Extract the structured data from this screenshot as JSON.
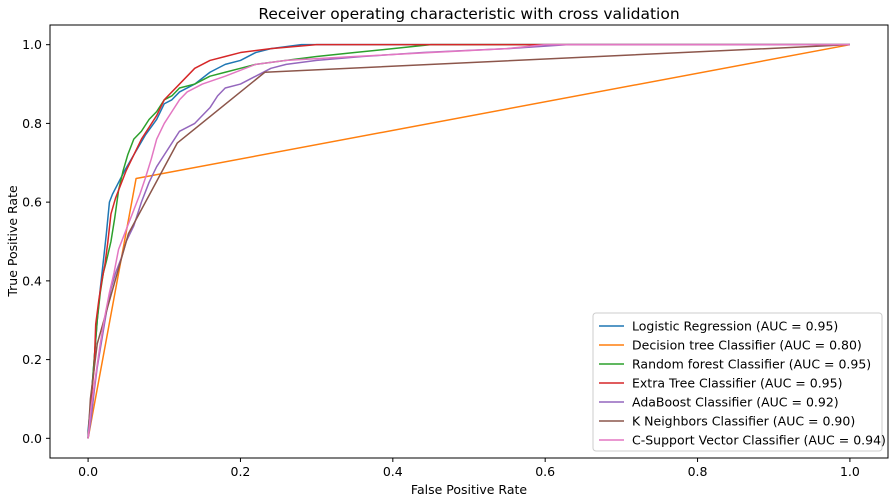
{
  "chart_data": {
    "type": "line",
    "title": "Receiver operating characteristic with cross validation",
    "xlabel": "False Positive Rate",
    "ylabel": "True Positive Rate",
    "xlim": [
      -0.05,
      1.05
    ],
    "ylim": [
      -0.05,
      1.05
    ],
    "xticks": [
      0.0,
      0.2,
      0.4,
      0.6,
      0.8,
      1.0
    ],
    "yticks": [
      0.0,
      0.2,
      0.4,
      0.6,
      0.8,
      1.0
    ],
    "xtick_labels": [
      "0.0",
      "0.2",
      "0.4",
      "0.6",
      "0.8",
      "1.0"
    ],
    "ytick_labels": [
      "0.0",
      "0.2",
      "0.4",
      "0.6",
      "0.8",
      "1.0"
    ],
    "grid": false,
    "legend_position": "lower-right",
    "series": [
      {
        "name": "Logistic Regression (AUC = 0.95)",
        "color": "#1f77b4",
        "points": [
          [
            0,
            0
          ],
          [
            0,
            0.02
          ],
          [
            0.004,
            0.1
          ],
          [
            0.008,
            0.2
          ],
          [
            0.012,
            0.3
          ],
          [
            0.016,
            0.38
          ],
          [
            0.02,
            0.45
          ],
          [
            0.024,
            0.52
          ],
          [
            0.028,
            0.6
          ],
          [
            0.032,
            0.62
          ],
          [
            0.04,
            0.65
          ],
          [
            0.048,
            0.68
          ],
          [
            0.06,
            0.72
          ],
          [
            0.075,
            0.77
          ],
          [
            0.09,
            0.81
          ],
          [
            0.1,
            0.85
          ],
          [
            0.11,
            0.86
          ],
          [
            0.12,
            0.88
          ],
          [
            0.14,
            0.9
          ],
          [
            0.16,
            0.93
          ],
          [
            0.18,
            0.95
          ],
          [
            0.2,
            0.96
          ],
          [
            0.22,
            0.98
          ],
          [
            0.24,
            0.99
          ],
          [
            0.28,
            1.0
          ],
          [
            1.0,
            1.0
          ]
        ]
      },
      {
        "name": "Decision tree Classifier (AUC = 0.80)",
        "color": "#ff7f0e",
        "points": [
          [
            0,
            0
          ],
          [
            0.063,
            0.66
          ],
          [
            1.0,
            1.0
          ]
        ]
      },
      {
        "name": "Random forest Classifier (AUC = 0.95)",
        "color": "#2ca02c",
        "points": [
          [
            0,
            0
          ],
          [
            0.004,
            0.1
          ],
          [
            0.008,
            0.2
          ],
          [
            0.012,
            0.3
          ],
          [
            0.016,
            0.37
          ],
          [
            0.02,
            0.42
          ],
          [
            0.024,
            0.45
          ],
          [
            0.03,
            0.5
          ],
          [
            0.035,
            0.56
          ],
          [
            0.04,
            0.63
          ],
          [
            0.046,
            0.68
          ],
          [
            0.052,
            0.72
          ],
          [
            0.06,
            0.76
          ],
          [
            0.07,
            0.78
          ],
          [
            0.08,
            0.81
          ],
          [
            0.09,
            0.83
          ],
          [
            0.1,
            0.86
          ],
          [
            0.11,
            0.87
          ],
          [
            0.12,
            0.89
          ],
          [
            0.14,
            0.9
          ],
          [
            0.16,
            0.92
          ],
          [
            0.18,
            0.93
          ],
          [
            0.2,
            0.94
          ],
          [
            0.22,
            0.95
          ],
          [
            0.26,
            0.96
          ],
          [
            0.3,
            0.97
          ],
          [
            0.35,
            0.98
          ],
          [
            0.4,
            0.99
          ],
          [
            0.45,
            1.0
          ],
          [
            1.0,
            1.0
          ]
        ]
      },
      {
        "name": "Extra Tree Classifier (AUC = 0.95)",
        "color": "#d62728",
        "points": [
          [
            0,
            0
          ],
          [
            0.004,
            0.1
          ],
          [
            0.008,
            0.18
          ],
          [
            0.01,
            0.29
          ],
          [
            0.014,
            0.35
          ],
          [
            0.018,
            0.4
          ],
          [
            0.022,
            0.44
          ],
          [
            0.026,
            0.5
          ],
          [
            0.03,
            0.57
          ],
          [
            0.036,
            0.61
          ],
          [
            0.042,
            0.64
          ],
          [
            0.05,
            0.68
          ],
          [
            0.06,
            0.72
          ],
          [
            0.07,
            0.76
          ],
          [
            0.08,
            0.79
          ],
          [
            0.09,
            0.82
          ],
          [
            0.1,
            0.86
          ],
          [
            0.12,
            0.9
          ],
          [
            0.14,
            0.94
          ],
          [
            0.16,
            0.96
          ],
          [
            0.18,
            0.97
          ],
          [
            0.2,
            0.98
          ],
          [
            0.24,
            0.99
          ],
          [
            0.3,
            1.0
          ],
          [
            0.55,
            1.0
          ],
          [
            1.0,
            1.0
          ]
        ]
      },
      {
        "name": "AdaBoost Classifier (AUC = 0.92)",
        "color": "#9467bd",
        "points": [
          [
            0,
            0
          ],
          [
            0.004,
            0.05
          ],
          [
            0.008,
            0.12
          ],
          [
            0.012,
            0.18
          ],
          [
            0.018,
            0.25
          ],
          [
            0.024,
            0.32
          ],
          [
            0.03,
            0.38
          ],
          [
            0.036,
            0.42
          ],
          [
            0.044,
            0.46
          ],
          [
            0.05,
            0.5
          ],
          [
            0.06,
            0.54
          ],
          [
            0.07,
            0.6
          ],
          [
            0.08,
            0.65
          ],
          [
            0.09,
            0.69
          ],
          [
            0.1,
            0.72
          ],
          [
            0.11,
            0.75
          ],
          [
            0.12,
            0.78
          ],
          [
            0.14,
            0.8
          ],
          [
            0.16,
            0.84
          ],
          [
            0.17,
            0.87
          ],
          [
            0.18,
            0.89
          ],
          [
            0.2,
            0.9
          ],
          [
            0.22,
            0.92
          ],
          [
            0.24,
            0.94
          ],
          [
            0.26,
            0.95
          ],
          [
            0.3,
            0.96
          ],
          [
            0.36,
            0.97
          ],
          [
            0.44,
            0.98
          ],
          [
            0.55,
            0.99
          ],
          [
            0.63,
            1.0
          ],
          [
            1.0,
            1.0
          ]
        ]
      },
      {
        "name": "K Neighbors Classifier (AUC = 0.90)",
        "color": "#8c564b",
        "points": [
          [
            0,
            0
          ],
          [
            0.003,
            0.1
          ],
          [
            0.012,
            0.24
          ],
          [
            0.053,
            0.52
          ],
          [
            0.117,
            0.75
          ],
          [
            0.232,
            0.93
          ],
          [
            1.0,
            1.0
          ]
        ]
      },
      {
        "name": "C-Support Vector Classifier (AUC = 0.94)",
        "color": "#e377c2",
        "points": [
          [
            0,
            0
          ],
          [
            0.004,
            0.08
          ],
          [
            0.01,
            0.16
          ],
          [
            0.016,
            0.24
          ],
          [
            0.022,
            0.31
          ],
          [
            0.028,
            0.37
          ],
          [
            0.034,
            0.42
          ],
          [
            0.04,
            0.48
          ],
          [
            0.05,
            0.53
          ],
          [
            0.06,
            0.58
          ],
          [
            0.068,
            0.62
          ],
          [
            0.075,
            0.66
          ],
          [
            0.083,
            0.71
          ],
          [
            0.09,
            0.76
          ],
          [
            0.1,
            0.8
          ],
          [
            0.11,
            0.83
          ],
          [
            0.12,
            0.86
          ],
          [
            0.13,
            0.88
          ],
          [
            0.15,
            0.9
          ],
          [
            0.18,
            0.92
          ],
          [
            0.22,
            0.95
          ],
          [
            0.26,
            0.96
          ],
          [
            0.35,
            0.97
          ],
          [
            0.45,
            0.98
          ],
          [
            0.55,
            0.99
          ],
          [
            0.6,
            1.0
          ],
          [
            1.0,
            1.0
          ]
        ]
      }
    ]
  }
}
